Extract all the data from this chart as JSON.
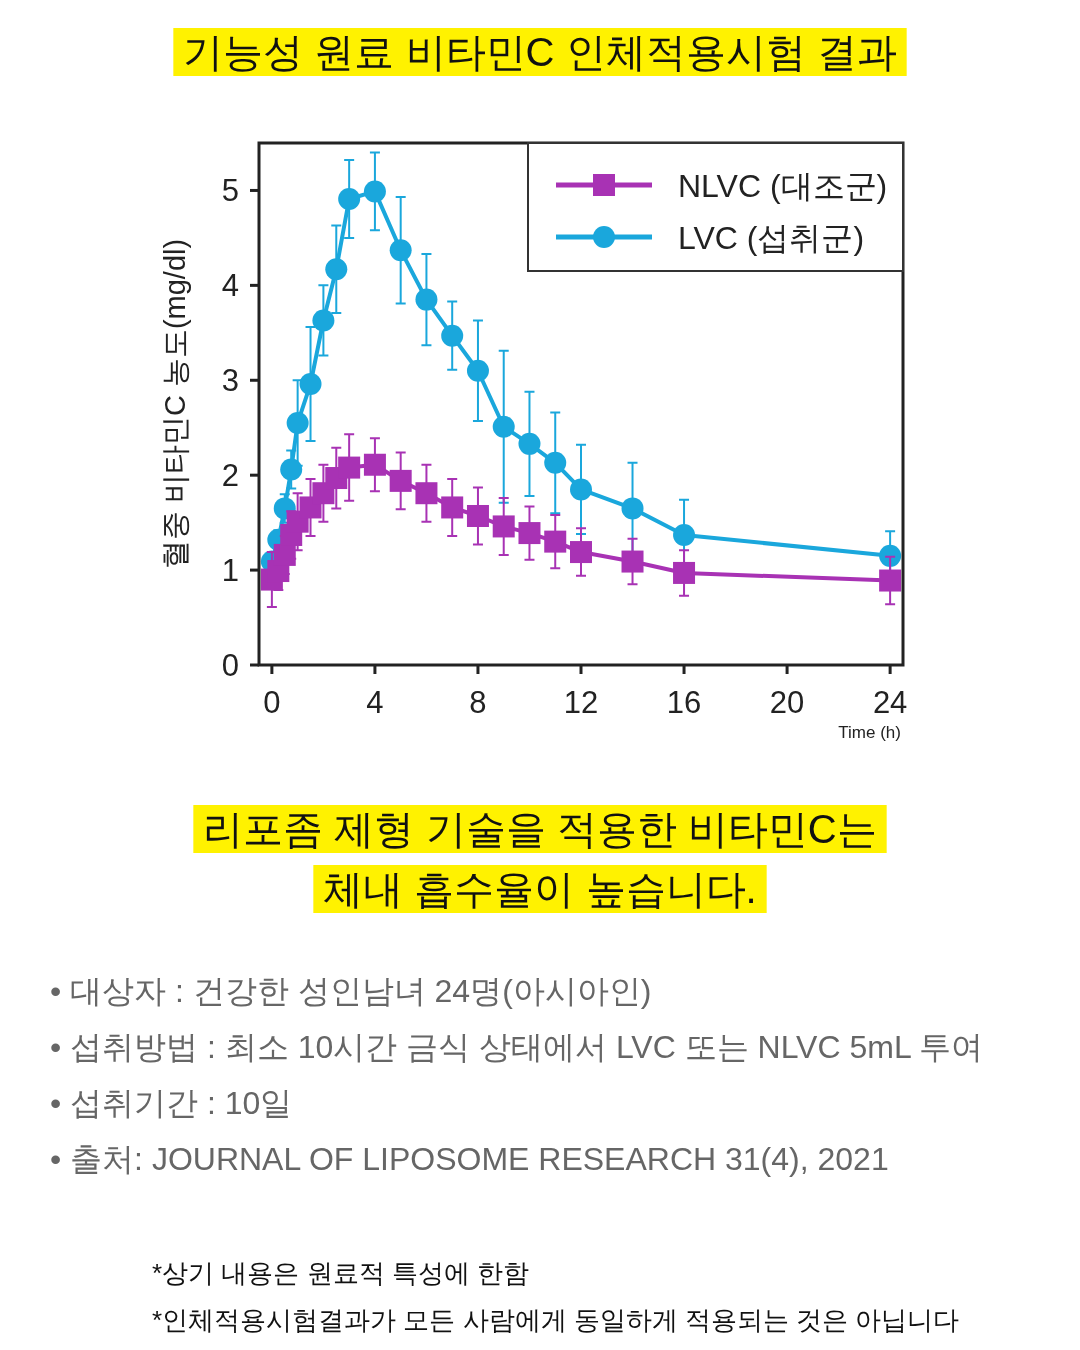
{
  "chart_data": {
    "type": "line",
    "title": "기능성 원료 비타민C 인체적용시험 결과",
    "xlabel": "Time (h)",
    "ylabel": "혈중 비타민C 농도(mg/dl)",
    "x": [
      0,
      0.25,
      0.5,
      0.75,
      1,
      1.5,
      2,
      2.5,
      3,
      4,
      5,
      6,
      7,
      8,
      9,
      10,
      11,
      12,
      14,
      16,
      24
    ],
    "series": [
      {
        "name": "NLVC (대조군)",
        "color": "#a832b4",
        "marker": "square",
        "values": [
          0.9,
          0.99,
          1.16,
          1.37,
          1.51,
          1.66,
          1.81,
          1.97,
          2.08,
          2.11,
          1.94,
          1.81,
          1.66,
          1.57,
          1.46,
          1.39,
          1.3,
          1.19,
          1.09,
          0.97,
          0.89
        ],
        "errors": [
          0.29,
          0.2,
          0.2,
          0.25,
          0.3,
          0.3,
          0.3,
          0.32,
          0.35,
          0.28,
          0.3,
          0.3,
          0.3,
          0.3,
          0.3,
          0.28,
          0.28,
          0.25,
          0.24,
          0.24,
          0.25
        ]
      },
      {
        "name": "LVC (섭취군)",
        "color": "#1aa7dc",
        "marker": "circle",
        "values": [
          1.09,
          1.32,
          1.65,
          2.06,
          2.55,
          2.96,
          3.63,
          4.17,
          4.91,
          4.99,
          4.37,
          3.85,
          3.47,
          3.1,
          2.51,
          2.33,
          2.13,
          1.85,
          1.65,
          1.37,
          1.15
        ],
        "errors": [
          0.1,
          0.1,
          0.15,
          0.2,
          0.45,
          0.6,
          0.37,
          0.46,
          0.41,
          0.41,
          0.56,
          0.48,
          0.36,
          0.53,
          0.8,
          0.55,
          0.53,
          0.47,
          0.48,
          0.37,
          0.26
        ]
      }
    ],
    "xlim": [
      -0.5,
      24.5
    ],
    "ylim": [
      0,
      5.5
    ],
    "xticks": [
      0,
      4,
      8,
      12,
      16,
      20,
      24
    ],
    "yticks": [
      0,
      1,
      2,
      3,
      4,
      5
    ],
    "grid": false,
    "legend": "top right",
    "line_style": "solid",
    "annotations": [
      "리포좀 제형 기술을 적용한 비타민C는\n체내 흡수율이 높습니다.",
      "• 대상자 : 건강한 성인남녀 24명(아시아인)",
      "• 섭취방법 : 최소 10시간 금식 상태에서 LVC 또는 NLVC 5mL 투여",
      "• 섭취기간 : 10일",
      "• 출처: JOURNAL OF LIPOSOME RESEARCH 31(4), 2021",
      "*상기 내용은 원료적 특성에 한함",
      "*인체적용시험결과가 모든 사람에게 동일하게 적용되는 것은 아닙니다"
    ]
  }
}
